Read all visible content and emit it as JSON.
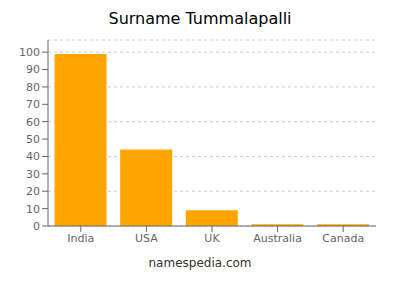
{
  "chart_data": {
    "type": "bar",
    "title": "Surname Tummalapalli",
    "categories": [
      "India",
      "USA",
      "UK",
      "Australia",
      "Canada"
    ],
    "values": [
      99,
      44,
      9,
      1,
      1
    ],
    "color": "#FFA500",
    "ylim": [
      0,
      107
    ],
    "yticks": [
      0,
      10,
      20,
      30,
      40,
      50,
      60,
      70,
      80,
      90,
      100
    ],
    "grid": true,
    "annotations": [
      "namespedia.com"
    ]
  }
}
